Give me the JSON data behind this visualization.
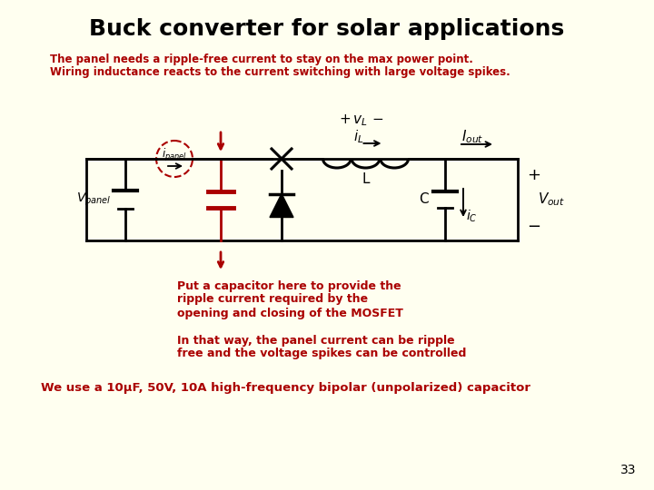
{
  "title": "Buck converter for solar applications",
  "title_fontsize": 18,
  "title_color": "#000000",
  "bg_color": "#FFFFF0",
  "red_color": "#AA0000",
  "black_color": "#000000",
  "subtitle_line1": "The panel needs a ripple-free current to stay on the max power point.",
  "subtitle_line2": "Wiring inductance reacts to the current switching with large voltage spikes.",
  "annotation1_line1": "Put a capacitor here to provide the",
  "annotation1_line2": "ripple current required by the",
  "annotation1_line3": "opening and closing of the MOSFET",
  "annotation2_line1": "In that way, the panel current can be ripple",
  "annotation2_line2": "free and the voltage spikes can be controlled",
  "annotation3": "We use a 10μF, 50V, 10A high-frequency bipolar (unpolarized) capacitor",
  "page_num": "33"
}
